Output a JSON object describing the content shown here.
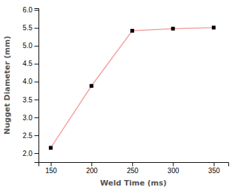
{
  "chart_data": {
    "type": "line",
    "xlabel": "Weld Time (ms)",
    "ylabel": "Nugget Diameter (mm)",
    "x": [
      150,
      200,
      250,
      300,
      350
    ],
    "values": [
      2.15,
      3.88,
      5.42,
      5.48,
      5.51
    ],
    "color": "#f4a0a0",
    "marker": "square",
    "xlim": [
      135,
      368
    ],
    "ylim": [
      1.75,
      6.05
    ],
    "xticks": [
      150,
      200,
      250,
      300,
      350
    ],
    "yticks": [
      {
        "value": 2.0,
        "label": "2.0"
      },
      2.5,
      {
        "value": 3.0,
        "label": "3.0"
      },
      3.5,
      {
        "value": 4.0,
        "label": "4.0"
      },
      4.5,
      {
        "value": 5.0,
        "label": "5.0"
      },
      5.5,
      {
        "value": 6.0,
        "label": "6.0"
      }
    ],
    "grid": false
  }
}
